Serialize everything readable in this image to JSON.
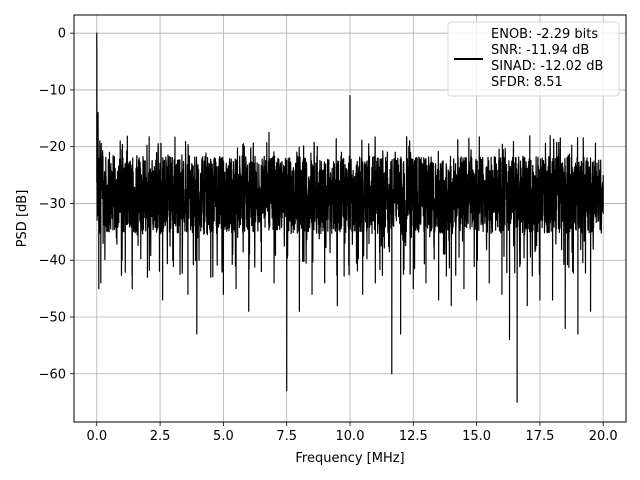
{
  "chart_data": {
    "type": "line",
    "title": "",
    "xlabel": "Frequency [MHz]",
    "ylabel": "PSD [dB]",
    "xlim": [
      -0.9,
      20.9
    ],
    "ylim": [
      -68.5,
      3.2
    ],
    "xticks": [
      0.0,
      2.5,
      5.0,
      7.5,
      10.0,
      12.5,
      15.0,
      17.5,
      20.0
    ],
    "xtick_labels": [
      "0.0",
      "2.5",
      "5.0",
      "7.5",
      "10.0",
      "12.5",
      "15.0",
      "17.5",
      "20.0"
    ],
    "yticks": [
      0,
      -10,
      -20,
      -30,
      -40,
      -50,
      -60
    ],
    "ytick_labels": [
      "0",
      "−10",
      "−20",
      "−30",
      "−40",
      "−50",
      "−60"
    ],
    "grid": true,
    "legend_position": "top-right",
    "series": [
      {
        "color": "#000000",
        "noise_band": {
          "x_range": [
            0.0,
            20.0
          ],
          "typical_low_db": -35,
          "typical_high_db": -22
        },
        "x": [
          0.0,
          0.02,
          0.05,
          0.08,
          0.12,
          0.16,
          0.2,
          0.3,
          0.5,
          1.0,
          1.4,
          2.0,
          2.6,
          3.0,
          3.6,
          3.95,
          4.5,
          5.0,
          5.5,
          6.0,
          6.5,
          6.8,
          7.0,
          7.5,
          8.0,
          8.5,
          9.0,
          9.5,
          10.0,
          10.5,
          11.0,
          11.65,
          12.0,
          12.5,
          13.0,
          13.5,
          14.0,
          14.5,
          15.0,
          15.5,
          16.0,
          16.3,
          16.6,
          17.0,
          17.5,
          18.0,
          18.5,
          19.0,
          19.5,
          20.0
        ],
        "y": [
          0.0,
          -30.0,
          -14.0,
          -45.0,
          -19.0,
          -44.0,
          -22.0,
          -25.0,
          -21.0,
          -40.0,
          -45.0,
          -43.0,
          -47.0,
          -40.0,
          -46.0,
          -53.0,
          -43.0,
          -46.0,
          -45.0,
          -49.0,
          -42.0,
          -17.5,
          -44.0,
          -63.0,
          -49.0,
          -46.0,
          -44.0,
          -48.0,
          -11.0,
          -46.0,
          -44.0,
          -60.0,
          -53.0,
          -45.0,
          -44.0,
          -47.0,
          -48.0,
          -45.0,
          -47.0,
          -44.0,
          -46.0,
          -54.0,
          -65.0,
          -48.0,
          -47.0,
          -47.0,
          -52.0,
          -53.0,
          -49.0,
          -25.0
        ]
      }
    ],
    "legend_entries": [
      "ENOB: -2.29 bits",
      "SNR: -11.94 dB",
      "SINAD: -12.02 dB",
      "SFDR: 8.51"
    ]
  }
}
